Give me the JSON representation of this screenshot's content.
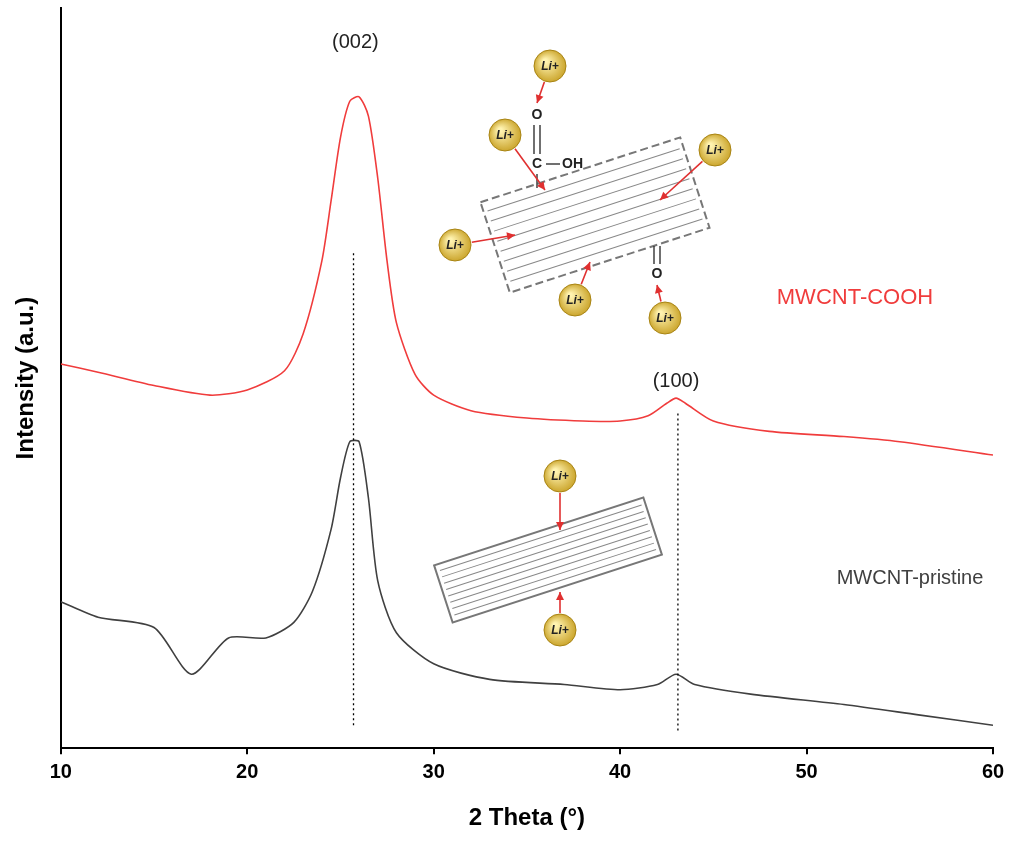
{
  "chart_data": {
    "type": "line",
    "x_label": "2 Theta (°)",
    "y_label": "Intensity (a.u.)",
    "xlim": [
      10,
      60
    ],
    "xticks": [
      10,
      20,
      30,
      40,
      50,
      60
    ],
    "ylim": [
      0,
      100
    ],
    "tick_labels": "x",
    "grid": false,
    "series": [
      {
        "name": "MWCNT-COOH",
        "color": "#f03c3c",
        "x": [
          10,
          12,
          15,
          18,
          20,
          22,
          23,
          24,
          24.5,
          25,
          25.5,
          26,
          26.5,
          27,
          27.5,
          28,
          29,
          30,
          32,
          35,
          38,
          40,
          41.5,
          42.5,
          43,
          43.5,
          45,
          48,
          52,
          55,
          60
        ],
        "values": [
          51.9,
          50.8,
          49,
          47.7,
          48.4,
          51,
          56,
          65.8,
          74,
          82.5,
          87.4,
          88,
          85.4,
          77,
          65.8,
          57.5,
          50.5,
          47.7,
          45.6,
          44.6,
          44.2,
          44.2,
          44.9,
          46.6,
          47.3,
          46.6,
          44.2,
          42.8,
          42.1,
          41.4,
          39.6
        ]
      },
      {
        "name": "MWCNT-pristine",
        "color": "#404040",
        "x": [
          10,
          12,
          15,
          17,
          19,
          21,
          22.5,
          23.5,
          24.5,
          25,
          25.5,
          26,
          26.5,
          27,
          28,
          30,
          33,
          37,
          40,
          42,
          43,
          44,
          47,
          52,
          56,
          60
        ],
        "values": [
          19.8,
          17.7,
          16.3,
          10,
          14.9,
          14.9,
          17,
          21.2,
          29.6,
          36.5,
          41.4,
          41.4,
          33.8,
          22.6,
          15.6,
          11.4,
          9.3,
          8.6,
          7.9,
          8.6,
          10,
          8.6,
          7.3,
          5.9,
          4.5,
          3.1
        ]
      }
    ],
    "annotations": [
      {
        "text": "(002)",
        "x": 25.8,
        "y": 95.4
      },
      {
        "text": "(100)",
        "x": 43.0,
        "y": 49.5
      }
    ],
    "reference_lines": [
      {
        "x": 25.7,
        "from": 3.1,
        "to": 67.2
      },
      {
        "x": 43.1,
        "from": 2.4,
        "to": 45.6
      }
    ],
    "insets": [
      {
        "series": "MWCNT-COOH",
        "labels": [
          "Li+",
          "Li+",
          "Li+",
          "Li+",
          "Li+",
          "Li+"
        ],
        "groups": [
          "C",
          "OH",
          "O",
          "O"
        ]
      },
      {
        "series": "MWCNT-pristine",
        "labels": [
          "Li+",
          "Li+"
        ]
      }
    ]
  }
}
